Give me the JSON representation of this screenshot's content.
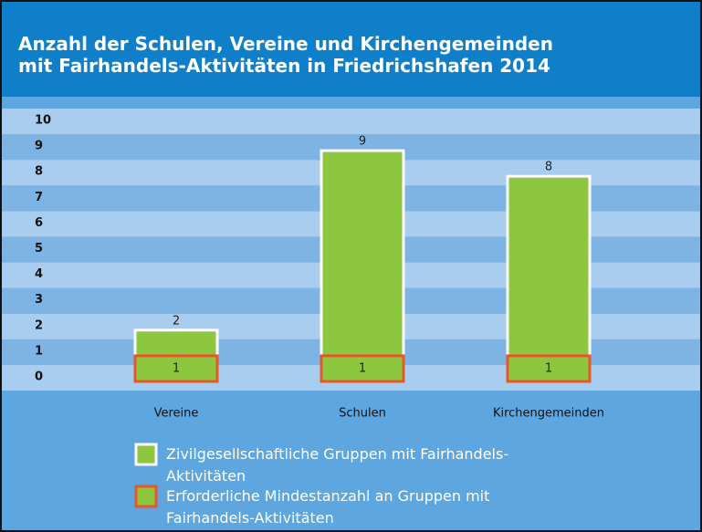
{
  "chart_data": {
    "type": "bar",
    "title": "Anzahl der Schulen, Vereine und Kirchengemeinden\nmit Fairhandels-Aktivitäten in Friedrichshafen 2014",
    "categories": [
      "Vereine",
      "Schulen",
      "Kirchengemeinden"
    ],
    "series": [
      {
        "name": "Zivilgesellschaftliche Gruppen mit Fairhandels-Aktivitäten",
        "color": "#8dc63f",
        "border": "#ffffff",
        "values": [
          2,
          9,
          8
        ]
      },
      {
        "name": "Erforderliche Mindestanzahl an Gruppen mit Fairhandels-Aktivitäten",
        "color": "#8dc63f",
        "border": "#e8562a",
        "values": [
          1,
          1,
          1
        ]
      }
    ],
    "ylim": [
      0,
      10
    ],
    "yticks": [
      0,
      1,
      2,
      3,
      4,
      5,
      6,
      7,
      8,
      9,
      10
    ],
    "grid": true
  }
}
